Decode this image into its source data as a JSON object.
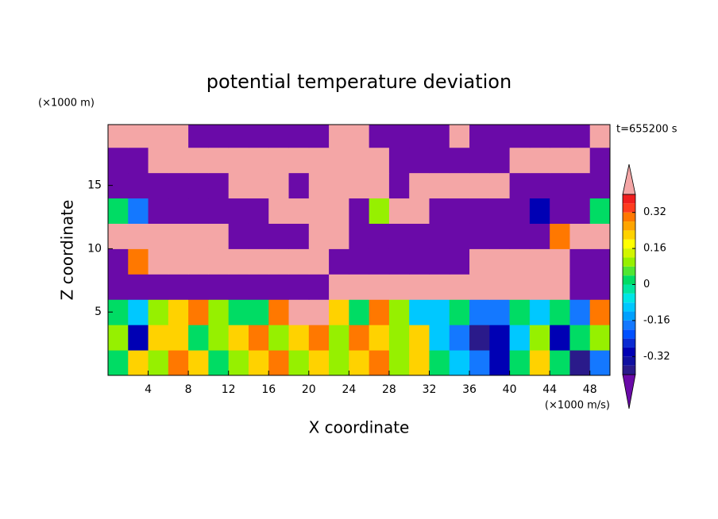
{
  "chart_data": {
    "type": "contour",
    "title": "potential temperature deviation",
    "xlabel": "X coordinate",
    "ylabel": "Z coordinate",
    "x_unit": "(×1000 m/s)",
    "y_unit": "(×1000 m)",
    "annotation": "t=655200 s",
    "xlim": [
      0,
      50
    ],
    "ylim": [
      0,
      19.8
    ],
    "xticks": [
      4,
      8,
      12,
      16,
      20,
      24,
      28,
      32,
      36,
      40,
      44,
      48
    ],
    "yticks": [
      5,
      10,
      15
    ],
    "x": [
      1,
      3,
      5,
      7,
      9,
      11,
      13,
      15,
      17,
      19,
      21,
      23,
      25,
      27,
      29,
      31,
      33,
      35,
      37,
      39,
      41,
      43,
      45,
      47,
      49
    ],
    "y": [
      1,
      3,
      5,
      7,
      9,
      11,
      13,
      15,
      17,
      19
    ],
    "z": [
      [
        0.0,
        0.2,
        0.1,
        0.3,
        0.2,
        0.0,
        0.1,
        0.2,
        0.3,
        0.1,
        0.2,
        0.1,
        0.2,
        0.3,
        0.1,
        0.2,
        0.0,
        -0.1,
        -0.2,
        -0.3,
        0.0,
        0.2,
        0.0,
        -0.4,
        -0.2
      ],
      [
        0.1,
        -0.3,
        0.2,
        0.2,
        0.0,
        0.1,
        0.2,
        0.3,
        0.1,
        0.2,
        0.3,
        0.1,
        0.3,
        0.2,
        0.1,
        0.2,
        -0.1,
        -0.2,
        -0.4,
        -0.3,
        -0.1,
        0.1,
        -0.3,
        0.0,
        0.1
      ],
      [
        0.0,
        -0.1,
        0.1,
        0.2,
        0.3,
        0.1,
        0.0,
        0.0,
        0.3,
        0.5,
        0.5,
        0.2,
        0.0,
        0.3,
        0.1,
        -0.1,
        -0.1,
        0.0,
        -0.2,
        -0.2,
        0.0,
        -0.1,
        0.0,
        -0.2,
        0.3
      ],
      [
        -0.5,
        -0.5,
        -0.5,
        -0.5,
        -0.5,
        -0.5,
        -0.5,
        -0.5,
        -0.5,
        -0.5,
        -0.5,
        0.5,
        0.5,
        0.5,
        0.5,
        0.5,
        0.5,
        0.5,
        0.5,
        0.5,
        0.5,
        0.5,
        0.5,
        -0.5,
        -0.5
      ],
      [
        -0.5,
        0.3,
        0.5,
        0.5,
        0.5,
        0.5,
        0.5,
        0.5,
        0.5,
        0.5,
        0.5,
        -0.5,
        -0.5,
        -0.5,
        -0.5,
        -0.5,
        -0.5,
        -0.5,
        0.5,
        0.5,
        0.5,
        0.5,
        0.5,
        -0.5,
        -0.5
      ],
      [
        0.5,
        0.5,
        0.5,
        0.5,
        0.5,
        0.5,
        -0.5,
        -0.5,
        -0.5,
        -0.5,
        0.5,
        0.5,
        -0.5,
        -0.5,
        -0.5,
        -0.5,
        -0.5,
        -0.5,
        -0.5,
        -0.5,
        -0.5,
        -0.5,
        0.3,
        0.5,
        0.5
      ],
      [
        0.0,
        -0.2,
        -0.5,
        -0.5,
        -0.5,
        -0.5,
        -0.5,
        -0.5,
        0.5,
        0.5,
        0.5,
        0.5,
        -0.5,
        0.1,
        0.5,
        0.5,
        -0.5,
        -0.5,
        -0.5,
        -0.5,
        -0.5,
        -0.3,
        -0.5,
        -0.5,
        0.0
      ],
      [
        -0.5,
        -0.5,
        -0.5,
        -0.5,
        -0.5,
        -0.5,
        0.5,
        0.5,
        0.5,
        -0.5,
        0.5,
        0.5,
        0.5,
        0.5,
        -0.5,
        0.5,
        0.5,
        0.5,
        0.5,
        0.5,
        -0.5,
        -0.5,
        -0.5,
        -0.5,
        -0.5
      ],
      [
        -0.5,
        -0.5,
        0.5,
        0.5,
        0.5,
        0.5,
        0.5,
        0.5,
        0.5,
        0.5,
        0.5,
        0.5,
        0.5,
        0.5,
        -0.5,
        -0.5,
        -0.5,
        -0.5,
        -0.5,
        -0.5,
        0.5,
        0.5,
        0.5,
        0.5,
        -0.5
      ],
      [
        0.5,
        0.5,
        0.5,
        0.5,
        -0.5,
        -0.5,
        -0.5,
        -0.5,
        -0.5,
        -0.5,
        -0.5,
        0.5,
        0.5,
        -0.5,
        -0.5,
        -0.5,
        -0.5,
        0.5,
        -0.5,
        -0.5,
        -0.5,
        -0.5,
        -0.5,
        -0.5,
        0.5
      ]
    ],
    "levels": [
      -0.4,
      -0.36,
      -0.32,
      -0.28,
      -0.24,
      -0.2,
      -0.16,
      -0.12,
      -0.08,
      -0.04,
      0,
      0.04,
      0.08,
      0.12,
      0.16,
      0.2,
      0.24,
      0.28,
      0.32,
      0.36,
      0.4
    ],
    "colors": [
      "#6a0aa8",
      "#2a1a8a",
      "#1010a0",
      "#0000b4",
      "#0a2ad2",
      "#0050ff",
      "#1478ff",
      "#00a0ff",
      "#00c8ff",
      "#00e6e6",
      "#00e6a0",
      "#00dc64",
      "#50e632",
      "#96f000",
      "#d2f500",
      "#ffff00",
      "#ffd200",
      "#ffa500",
      "#ff7800",
      "#ff3c1e",
      "#f01e1e",
      "#f4a6a6"
    ],
    "colorbar_ticks": [
      0.32,
      0.16,
      0,
      -0.16,
      -0.32
    ]
  }
}
